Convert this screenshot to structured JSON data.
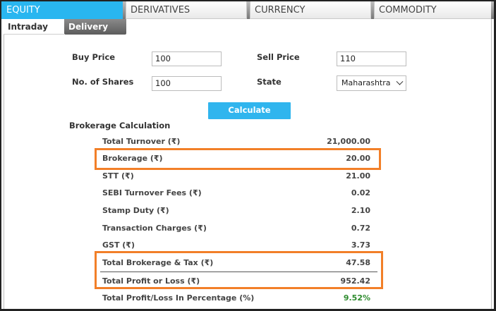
{
  "tabs": [
    "EQUITY",
    "DERIVATIVES",
    "CURRENCY",
    "COMMODITY"
  ],
  "subtabs": [
    "Intraday",
    "Delivery"
  ],
  "form": {
    "buy_price_label": "Buy Price",
    "buy_price_value": "100",
    "sell_price_label": "Sell Price",
    "sell_price_value": "110",
    "shares_label": "No. of Shares",
    "shares_value": "100",
    "state_label": "State",
    "state_value": "Maharashtra",
    "calculate_label": "Calculate"
  },
  "brokerage": {
    "title": "Brokerage Calculation",
    "rows": [
      {
        "name": "Total Turnover (₹)",
        "value": "21,000.00"
      },
      {
        "name": "Brokerage (₹)",
        "value": "20.00"
      },
      {
        "name": "STT (₹)",
        "value": "21.00"
      },
      {
        "name": "SEBI Turnover Fees (₹)",
        "value": "0.02"
      },
      {
        "name": "Stamp Duty (₹)",
        "value": "2.10"
      },
      {
        "name": "Transaction Charges (₹)",
        "value": "0.72"
      },
      {
        "name": "GST (₹)",
        "value": "3.73"
      },
      {
        "name": "Total Brokerage & Tax (₹)",
        "value": "47.58"
      },
      {
        "name": "Total Profit or Loss (₹)",
        "value": "952.42"
      },
      {
        "name": "Total Profit/Loss In Percentage (%)",
        "value": "9.52%"
      }
    ]
  },
  "colors": {
    "accent": "#29b6f0",
    "highlight": "#f27f28",
    "positive": "#2e8b2e"
  }
}
